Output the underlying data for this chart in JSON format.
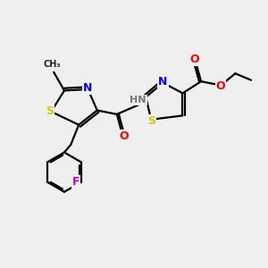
{
  "bg_color": "#efefef",
  "bond_color": "#000000",
  "bond_width": 1.6,
  "atom_colors": {
    "N": "#0000ff",
    "S": "#cccc00",
    "O": "#ff0000",
    "F": "#cc00cc",
    "H": "#777777",
    "C": "#000000"
  },
  "font_size_atom": 9,
  "font_size_small": 7.5
}
